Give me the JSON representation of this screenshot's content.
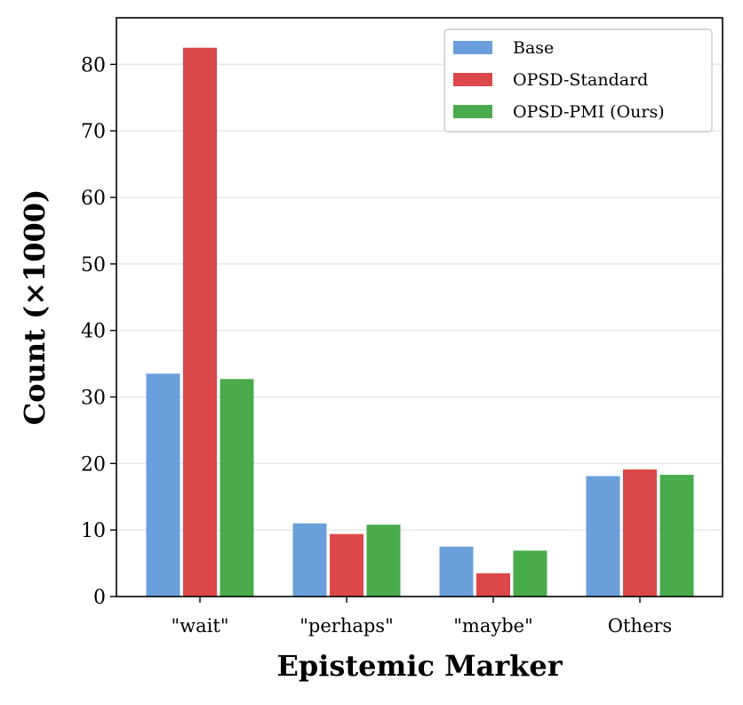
{
  "chart_data": {
    "type": "bar",
    "title": "",
    "xlabel": "Epistemic Marker",
    "ylabel": "Count (×1000)",
    "categories": [
      "\"wait\"",
      "\"perhaps\"",
      "\"maybe\"",
      "Others"
    ],
    "series": [
      {
        "name": "Base",
        "color": "#6a9fdc",
        "values": [
          33.5,
          11.0,
          7.5,
          18.1
        ]
      },
      {
        "name": "OPSD-Standard",
        "color": "#dc4749",
        "values": [
          82.5,
          9.4,
          3.5,
          19.1
        ]
      },
      {
        "name": "OPSD-PMI (Ours)",
        "color": "#4aab4c",
        "values": [
          32.7,
          10.8,
          6.9,
          18.3
        ]
      }
    ],
    "ylim": [
      0,
      87
    ],
    "yticks": [
      0,
      10,
      20,
      30,
      40,
      50,
      60,
      70,
      80
    ],
    "grid": "horizontal",
    "legend": "top-right"
  }
}
